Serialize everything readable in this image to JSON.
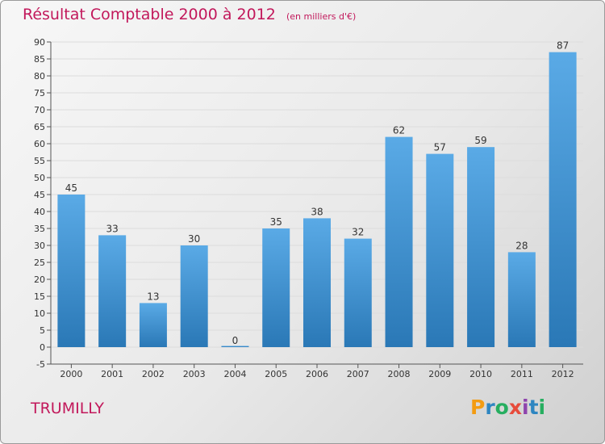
{
  "title": "Résultat Comptable 2000 à 2012",
  "subtitle": "(en milliers d'€)",
  "commune": "TRUMILLY",
  "logo_text": "Proxiti",
  "colors": {
    "title": "#c2185b",
    "bar_top": "#5aaae6",
    "bar_bottom": "#2a78b6"
  },
  "chart_data": {
    "type": "bar",
    "categories": [
      "2000",
      "2001",
      "2002",
      "2003",
      "2004",
      "2005",
      "2006",
      "2007",
      "2008",
      "2009",
      "2010",
      "2011",
      "2012"
    ],
    "values": [
      45,
      33,
      13,
      30,
      0,
      35,
      38,
      32,
      62,
      57,
      59,
      28,
      87
    ],
    "ylim": [
      -5,
      90
    ],
    "yticks": [
      -5,
      0,
      5,
      10,
      15,
      20,
      25,
      30,
      35,
      40,
      45,
      50,
      55,
      60,
      65,
      70,
      75,
      80,
      85,
      90
    ],
    "grid": true,
    "data_labels": true
  }
}
